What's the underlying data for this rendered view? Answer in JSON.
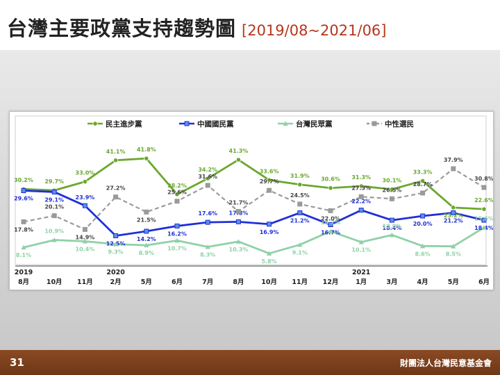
{
  "slide": {
    "title": "台灣主要政黨支持趨勢圖",
    "subtitle": "[2019/08~2021/06]",
    "page_number": "31",
    "organization": "財團法人台灣民意基金會"
  },
  "colors": {
    "title_accent": "#b5361c",
    "footer": "#7a3f1c",
    "dpp": "#6aa82e",
    "kmt": "#1f2fd6",
    "tpp": "#8fd1a8",
    "neutral": "#9a9a9a"
  },
  "chart_data": {
    "type": "line",
    "title": "",
    "categories": [
      "8月",
      "10月",
      "11月",
      "2月",
      "5月",
      "6月",
      "7月",
      "8月",
      "10月",
      "11月",
      "12月",
      "1月",
      "3月",
      "4月",
      "5月",
      "6月"
    ],
    "year_labels": [
      {
        "index": 0,
        "label": "2019"
      },
      {
        "index": 3,
        "label": "2020"
      },
      {
        "index": 11,
        "label": "2021"
      }
    ],
    "ylim": [
      0,
      50
    ],
    "grid": false,
    "legend_position": "top",
    "series": [
      {
        "name": "民主進步黨",
        "color": "#6aa82e",
        "dash": "solid",
        "marker": "circle",
        "values": [
          30.2,
          29.7,
          33.0,
          41.1,
          41.8,
          28.2,
          34.2,
          41.3,
          33.6,
          31.9,
          30.6,
          31.3,
          30.1,
          33.3,
          23.2,
          22.6
        ],
        "labels": [
          "30.2%",
          "29.7%",
          "33.0%",
          "41.1%",
          "41.8%",
          "28.2%",
          "34.2%",
          "41.3%",
          "33.6%",
          "31.9%",
          "30.6%",
          "31.3%",
          "30.1%",
          "33.3%",
          "23.2%",
          "22.6%"
        ]
      },
      {
        "name": "中國國民黨",
        "color": "#1f2fd6",
        "dash": "solid",
        "marker": "square",
        "values": [
          29.6,
          29.1,
          23.9,
          12.5,
          14.2,
          16.2,
          17.6,
          17.8,
          16.9,
          21.2,
          16.7,
          22.2,
          18.4,
          20.0,
          21.2,
          18.4
        ],
        "labels": [
          "29.6%",
          "29.1%",
          "23.9%",
          "12.5%",
          "14.2%",
          "16.2%",
          "17.6%",
          "17.8%",
          "16.9%",
          "21.2%",
          "16.7%",
          "22.2%",
          "18.4%",
          "20.0%",
          "21.2%",
          "18.4%"
        ]
      },
      {
        "name": "台灣民眾黨",
        "color": "#8fd1a8",
        "dash": "solid",
        "marker": "triangle",
        "values": [
          8.1,
          10.9,
          10.4,
          9.3,
          8.9,
          10.7,
          8.3,
          10.3,
          5.8,
          9.1,
          14.2,
          10.1,
          12.8,
          8.6,
          8.5,
          15.6
        ],
        "labels": [
          "8.1%",
          "10.9%",
          "10.4%",
          "9.3%",
          "8.9%",
          "10.7%",
          "8.3%",
          "10.3%",
          "5.8%",
          "9.1%",
          "14.2%",
          "10.1%",
          "12.8%",
          "8.6%",
          "8.5%",
          "15.6%"
        ]
      },
      {
        "name": "中性選民",
        "color": "#9a9a9a",
        "dash": "dashed",
        "marker": "square",
        "values": [
          17.8,
          20.1,
          14.9,
          27.2,
          21.5,
          25.6,
          31.6,
          21.7,
          29.7,
          24.5,
          22.0,
          27.3,
          26.5,
          28.7,
          37.9,
          30.8
        ],
        "labels": [
          "17.8%",
          "20.1%",
          "14.9%",
          "27.2%",
          "21.5%",
          "25.6%",
          "31.6%",
          "21.7%",
          "29.7%",
          "24.5%",
          "22.0%",
          "27.3%",
          "26.5%",
          "28.7%",
          "37.9%",
          "30.8%"
        ]
      }
    ]
  }
}
